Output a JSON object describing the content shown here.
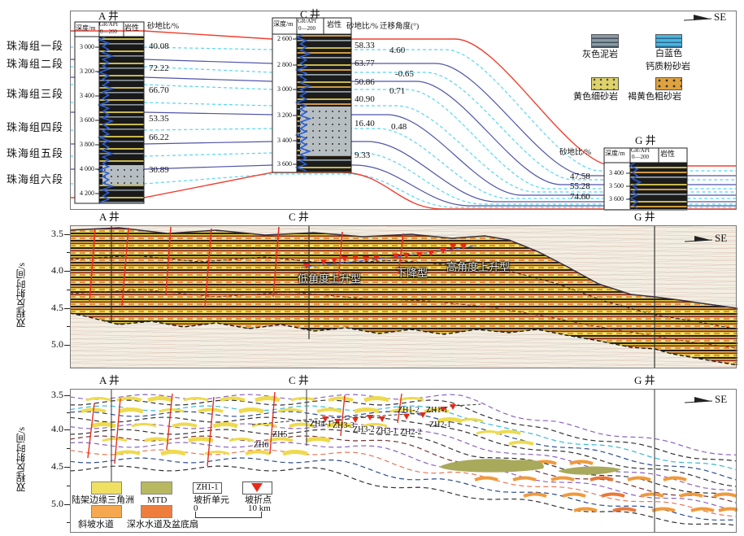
{
  "top_panel": {
    "se_label": "SE",
    "formations": [
      "珠海组一段",
      "珠海组二段",
      "珠海组三段",
      "珠海组四段",
      "珠海组五段",
      "珠海组六段"
    ],
    "headers": {
      "depth": "深度/m",
      "gr": "GR/API",
      "gr_range": "0—200",
      "lith": "岩性",
      "sand": "砂地比/%",
      "migration": "迁移角度(°)"
    },
    "well_a": {
      "title": "A 井",
      "depth_ticks": [
        "3 000",
        "3 200",
        "3 400",
        "3 600",
        "3 800",
        "4 000",
        "4 200"
      ],
      "sand_values": [
        "40.08",
        "72.22",
        "66.70",
        "53.35",
        "66.22",
        "30.89"
      ]
    },
    "well_c": {
      "title": "C 井",
      "depth_ticks": [
        "2 600",
        "2 800",
        "3 000",
        "3 200",
        "3 400",
        "3 600"
      ],
      "sand_values": [
        "58.33",
        "63.77",
        "50.86",
        "40.90",
        "16.40",
        "9.33"
      ],
      "migration_values": [
        "4.60",
        "-0.65",
        "0.71",
        "0.48"
      ]
    },
    "well_g": {
      "title": "G 井",
      "depth_ticks": [
        "3 400",
        "3 500",
        "3 600"
      ],
      "sand_values": [
        "47.58",
        "55.28",
        "74.60"
      ]
    },
    "legend": {
      "items": [
        {
          "label": "灰色泥岩",
          "color": "#8a9aa6"
        },
        {
          "label_line1": "白蓝色",
          "label_line2": "钙质粉砂岩",
          "color": "#4cb6de"
        },
        {
          "label": "黄色细砂岩",
          "color": "#ded269"
        },
        {
          "label": "褐黄色粗砂岩",
          "color": "#e0a23e"
        }
      ]
    },
    "colors": {
      "sequence_boundary": "#f04030",
      "member_boundary": "#5055a8",
      "marker": "#58d5f2"
    }
  },
  "middle_panel": {
    "ylabel": "双程反射时间/s",
    "yticks": [
      "3.5",
      "4.0",
      "4.5",
      "5.0"
    ],
    "well_labels": [
      "A 井",
      "C 井",
      "G 井"
    ],
    "se_label": "SE",
    "annotations": {
      "low": "低角度上升型",
      "down": "下降型",
      "high": "高角度上升型"
    }
  },
  "bottom_panel": {
    "ylabel": "双程反射时间/s",
    "yticks": [
      "3.5",
      "4.0",
      "4.5",
      "5.0"
    ],
    "well_labels": [
      "A 井",
      "C 井",
      "G 井"
    ],
    "se_label": "SE",
    "zh_labels": [
      "ZH1-2",
      "ZH1-1",
      "ZH2-1",
      "ZH2-2",
      "ZH3-1",
      "ZH3-2",
      "ZH3-3",
      "ZH4-1",
      "ZH5",
      "ZH6"
    ],
    "legend": {
      "delta": "陆架边缘三角洲",
      "mtd": "MTD",
      "unit_box": "ZH1-1",
      "unit": "坡折单元",
      "point": "坡折点",
      "channel": "斜坡水道",
      "deepwater": "深水水道及盆底扇",
      "scale_start": "0",
      "scale_end": "10 km"
    }
  }
}
